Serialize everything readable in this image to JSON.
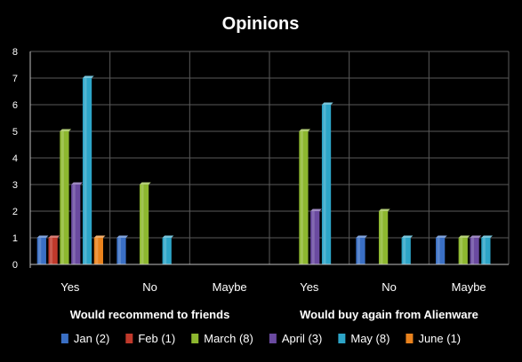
{
  "chart_data": {
    "type": "bar",
    "title": "Opinions",
    "ylim": [
      0,
      8
    ],
    "yticks": [
      0,
      1,
      2,
      3,
      4,
      5,
      6,
      7,
      8
    ],
    "grid": true,
    "legend_position": "bottom",
    "categories": [
      "Yes",
      "No",
      "Maybe",
      "Yes",
      "No",
      "Maybe"
    ],
    "groups": [
      {
        "label": "Would recommend to friends",
        "categories": [
          "Yes",
          "No",
          "Maybe"
        ]
      },
      {
        "label": "Would buy again from Alienware",
        "categories": [
          "Yes",
          "No",
          "Maybe"
        ]
      }
    ],
    "series": [
      {
        "name": "Jan (2)",
        "color": "#3a6fc4",
        "values": [
          1,
          1,
          0,
          0,
          1,
          1
        ]
      },
      {
        "name": "Feb (1)",
        "color": "#c0392b",
        "values": [
          1,
          0,
          0,
          0,
          0,
          0
        ]
      },
      {
        "name": "March (8)",
        "color": "#8db72f",
        "values": [
          5,
          3,
          0,
          5,
          2,
          1
        ]
      },
      {
        "name": "April (3)",
        "color": "#6a4aa0",
        "values": [
          3,
          0,
          0,
          2,
          0,
          1
        ]
      },
      {
        "name": "May (8)",
        "color": "#2da5c8",
        "values": [
          7,
          1,
          0,
          6,
          1,
          1
        ]
      },
      {
        "name": "June (1)",
        "color": "#e9821d",
        "values": [
          1,
          0,
          0,
          0,
          0,
          0
        ]
      }
    ]
  }
}
